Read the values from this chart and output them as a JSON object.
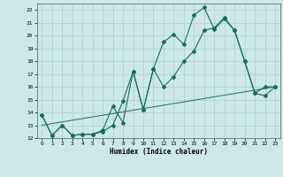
{
  "title": "",
  "xlabel": "Humidex (Indice chaleur)",
  "xlim": [
    -0.5,
    23.5
  ],
  "ylim": [
    12,
    22.5
  ],
  "yticks": [
    12,
    13,
    14,
    15,
    16,
    17,
    18,
    19,
    20,
    21,
    22
  ],
  "xticks": [
    0,
    1,
    2,
    3,
    4,
    5,
    6,
    7,
    8,
    9,
    10,
    11,
    12,
    13,
    14,
    15,
    16,
    17,
    18,
    19,
    20,
    21,
    22,
    23
  ],
  "background_color": "#cde8e8",
  "grid_color": "#aacfcf",
  "line_color": "#1a6b5a",
  "series1": {
    "x": [
      0,
      1,
      2,
      3,
      4,
      5,
      6,
      7,
      8,
      9,
      10,
      11,
      12,
      13,
      14,
      15,
      16,
      17,
      18,
      19,
      20,
      21,
      22,
      23
    ],
    "y": [
      13.8,
      12.2,
      13.0,
      12.2,
      12.3,
      12.3,
      12.6,
      14.5,
      13.2,
      17.2,
      14.2,
      17.4,
      19.5,
      20.1,
      19.3,
      21.6,
      22.2,
      20.5,
      21.3,
      20.4,
      18.0,
      15.5,
      16.0,
      16.0
    ]
  },
  "series2": {
    "x": [
      0,
      1,
      2,
      3,
      4,
      5,
      6,
      7,
      8,
      9,
      10,
      11,
      12,
      13,
      14,
      15,
      16,
      17,
      18,
      19,
      20,
      21,
      22,
      23
    ],
    "y": [
      13.8,
      12.2,
      13.0,
      12.2,
      12.3,
      12.3,
      12.5,
      13.0,
      14.9,
      17.2,
      14.2,
      17.4,
      16.0,
      16.8,
      18.0,
      18.8,
      20.4,
      20.6,
      21.4,
      20.4,
      18.0,
      15.5,
      15.3,
      16.0
    ]
  },
  "series3": {
    "x": [
      0,
      23
    ],
    "y": [
      13.0,
      16.0
    ]
  }
}
